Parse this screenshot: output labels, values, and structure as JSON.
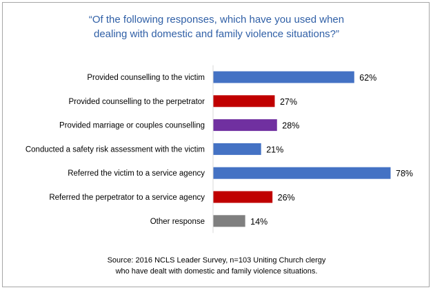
{
  "chart_data": {
    "type": "bar",
    "orientation": "horizontal",
    "title_lines": [
      "“Of the following responses, which have you used when",
      "dealing with domestic and family violence situations?”"
    ],
    "categories": [
      "Provided counselling to the victim",
      "Provided counselling to the perpetrator",
      "Provided marriage or couples counselling",
      "Conducted a safety risk assessment with the victim",
      "Referred the victim to a service agency",
      "Referred the perpetrator to a service agency",
      "Other response"
    ],
    "values": [
      62,
      27,
      28,
      21,
      78,
      26,
      14
    ],
    "value_labels": [
      "62%",
      "27%",
      "28%",
      "21%",
      "78%",
      "26%",
      "14%"
    ],
    "bar_colors": [
      "#4472c4",
      "#c00000",
      "#7030a0",
      "#4472c4",
      "#4472c4",
      "#c00000",
      "#7f7f7f"
    ],
    "xlim": [
      0,
      78
    ],
    "grid": false,
    "legend": false,
    "source_lines": [
      "Source: 2016 NCLS Leader Survey, n=103 Uniting Church clergy",
      "who have dealt with domestic and family violence situations."
    ]
  },
  "colors": {
    "title": "#2f5fa6",
    "axis_line": "#d9d9d9",
    "border": "#a6a6a6"
  }
}
